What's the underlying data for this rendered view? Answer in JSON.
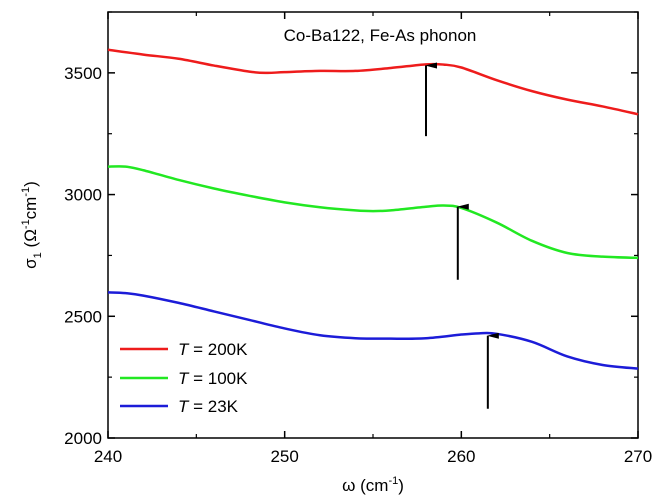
{
  "chart_data": {
    "type": "line",
    "title": "Co-Ba122, Fe-As phonon",
    "xlabel": {
      "prefix": "ω (cm",
      "sup": "-1",
      "suffix": ")"
    },
    "ylabel": {
      "main": "σ",
      "sub": "1",
      "open": " (Ω",
      "sup1": "-1",
      "mid": "cm",
      "sup2": "-1",
      "close": ")"
    },
    "xlim": [
      240,
      270
    ],
    "ylim": [
      2000,
      3750
    ],
    "xticks": [
      240,
      250,
      260,
      270
    ],
    "yticks": [
      2000,
      2500,
      3000,
      3500
    ],
    "grid": false,
    "legend_position": "bottom-left",
    "series": [
      {
        "name_prefix": "T",
        "name_suffix": " = 200K",
        "color": "#ee1c1c",
        "x": [
          240,
          242,
          244,
          246,
          248,
          249,
          250,
          252,
          254,
          256,
          258,
          259,
          260,
          262,
          264,
          266,
          268,
          270
        ],
        "y": [
          3595,
          3575,
          3558,
          3530,
          3505,
          3500,
          3503,
          3508,
          3508,
          3520,
          3535,
          3534,
          3522,
          3470,
          3425,
          3390,
          3362,
          3330
        ]
      },
      {
        "name_prefix": "T",
        "name_suffix": " = 100K",
        "color": "#22e822",
        "x": [
          240,
          241,
          242,
          244,
          246,
          248,
          250,
          252,
          254,
          255,
          256,
          258,
          259,
          260,
          262,
          264,
          266,
          268,
          270
        ],
        "y": [
          3115,
          3115,
          3100,
          3060,
          3025,
          2995,
          2968,
          2948,
          2935,
          2932,
          2935,
          2950,
          2955,
          2945,
          2885,
          2810,
          2760,
          2745,
          2740
        ]
      },
      {
        "name_prefix": "T",
        "name_suffix": " = 23K",
        "color": "#1c1cd8",
        "x": [
          240,
          241,
          242,
          244,
          246,
          248,
          250,
          252,
          254,
          256,
          258,
          260,
          261,
          262,
          264,
          266,
          268,
          270
        ],
        "y": [
          2598,
          2595,
          2585,
          2555,
          2520,
          2485,
          2450,
          2422,
          2410,
          2408,
          2410,
          2425,
          2430,
          2428,
          2395,
          2335,
          2300,
          2285
        ]
      }
    ],
    "annotations": [
      {
        "type": "arrow",
        "x": 258,
        "y_from": 3240,
        "y_to": 3530
      },
      {
        "type": "arrow",
        "x": 259.8,
        "y_from": 2650,
        "y_to": 2950
      },
      {
        "type": "arrow",
        "x": 261.5,
        "y_from": 2120,
        "y_to": 2420
      }
    ]
  }
}
